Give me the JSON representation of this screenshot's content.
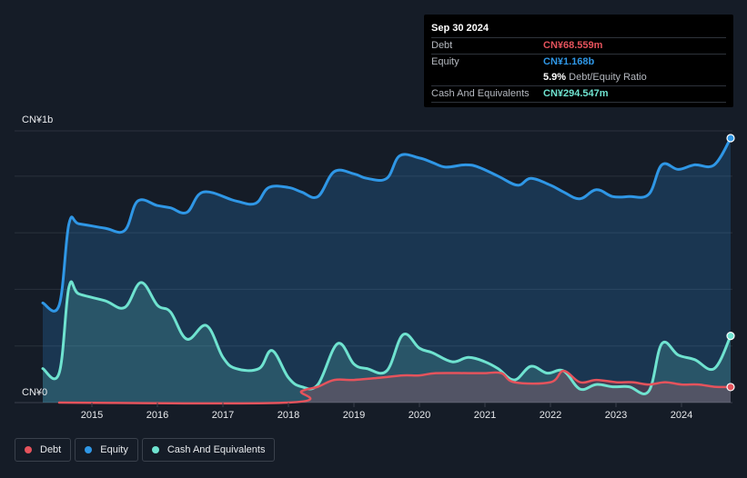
{
  "tooltip": {
    "date": "Sep 30 2024",
    "debt_label": "Debt",
    "debt_value": "CN¥68.559m",
    "equity_label": "Equity",
    "equity_value": "CN¥1.168b",
    "ratio_value": "5.9%",
    "ratio_label": "Debt/Equity Ratio",
    "cash_label": "Cash And Equivalents",
    "cash_value": "CN¥294.547m"
  },
  "colors": {
    "debt": "#e5535c",
    "equity": "#2f97e6",
    "cash": "#6fe3d0"
  },
  "legend": [
    {
      "key": "debt",
      "label": "Debt"
    },
    {
      "key": "equity",
      "label": "Equity"
    },
    {
      "key": "cash",
      "label": "Cash And Equivalents"
    }
  ],
  "chart_data": {
    "type": "area",
    "title": "",
    "xlabel": "",
    "ylabel": "",
    "y_tick_labels": {
      "top": "CN¥1b",
      "bottom": "CN¥0"
    },
    "ylim": [
      0,
      1.2
    ],
    "xlim": [
      2014.25,
      2024.75
    ],
    "x_tick_labels": [
      "2015",
      "2016",
      "2017",
      "2018",
      "2019",
      "2020",
      "2021",
      "2022",
      "2023",
      "2024"
    ],
    "x_ticks": [
      2015,
      2016,
      2017,
      2018,
      2019,
      2020,
      2021,
      2022,
      2023,
      2024
    ],
    "series": [
      {
        "name": "Equity",
        "key": "equity",
        "unit": "CN¥b",
        "points": [
          [
            2014.25,
            0.44
          ],
          [
            2014.5,
            0.43
          ],
          [
            2014.65,
            0.79
          ],
          [
            2014.8,
            0.79
          ],
          [
            2015.2,
            0.77
          ],
          [
            2015.5,
            0.76
          ],
          [
            2015.7,
            0.89
          ],
          [
            2016.0,
            0.87
          ],
          [
            2016.2,
            0.86
          ],
          [
            2016.45,
            0.84
          ],
          [
            2016.7,
            0.93
          ],
          [
            2017.2,
            0.89
          ],
          [
            2017.5,
            0.88
          ],
          [
            2017.7,
            0.95
          ],
          [
            2018.0,
            0.95
          ],
          [
            2018.2,
            0.93
          ],
          [
            2018.45,
            0.91
          ],
          [
            2018.7,
            1.02
          ],
          [
            2019.0,
            1.01
          ],
          [
            2019.2,
            0.99
          ],
          [
            2019.5,
            0.99
          ],
          [
            2019.7,
            1.09
          ],
          [
            2020.0,
            1.08
          ],
          [
            2020.2,
            1.06
          ],
          [
            2020.4,
            1.04
          ],
          [
            2020.7,
            1.05
          ],
          [
            2020.9,
            1.04
          ],
          [
            2021.2,
            1.0
          ],
          [
            2021.5,
            0.96
          ],
          [
            2021.7,
            0.99
          ],
          [
            2022.0,
            0.96
          ],
          [
            2022.2,
            0.93
          ],
          [
            2022.45,
            0.9
          ],
          [
            2022.7,
            0.94
          ],
          [
            2022.95,
            0.91
          ],
          [
            2023.2,
            0.91
          ],
          [
            2023.5,
            0.92
          ],
          [
            2023.7,
            1.05
          ],
          [
            2023.95,
            1.03
          ],
          [
            2024.2,
            1.05
          ],
          [
            2024.5,
            1.05
          ],
          [
            2024.75,
            1.168
          ]
        ]
      },
      {
        "name": "Cash And Equivalents",
        "key": "cash",
        "unit": "CN¥b",
        "points": [
          [
            2014.25,
            0.15
          ],
          [
            2014.5,
            0.13
          ],
          [
            2014.65,
            0.51
          ],
          [
            2014.8,
            0.48
          ],
          [
            2015.2,
            0.45
          ],
          [
            2015.5,
            0.42
          ],
          [
            2015.75,
            0.53
          ],
          [
            2016.0,
            0.43
          ],
          [
            2016.2,
            0.4
          ],
          [
            2016.45,
            0.28
          ],
          [
            2016.75,
            0.34
          ],
          [
            2017.0,
            0.2
          ],
          [
            2017.2,
            0.15
          ],
          [
            2017.55,
            0.15
          ],
          [
            2017.75,
            0.23
          ],
          [
            2018.0,
            0.11
          ],
          [
            2018.2,
            0.07
          ],
          [
            2018.45,
            0.08
          ],
          [
            2018.75,
            0.26
          ],
          [
            2019.0,
            0.17
          ],
          [
            2019.2,
            0.15
          ],
          [
            2019.5,
            0.14
          ],
          [
            2019.75,
            0.3
          ],
          [
            2020.0,
            0.24
          ],
          [
            2020.2,
            0.22
          ],
          [
            2020.5,
            0.18
          ],
          [
            2020.75,
            0.2
          ],
          [
            2021.0,
            0.18
          ],
          [
            2021.2,
            0.15
          ],
          [
            2021.45,
            0.1
          ],
          [
            2021.7,
            0.16
          ],
          [
            2021.95,
            0.13
          ],
          [
            2022.2,
            0.14
          ],
          [
            2022.45,
            0.06
          ],
          [
            2022.7,
            0.08
          ],
          [
            2022.95,
            0.07
          ],
          [
            2023.2,
            0.07
          ],
          [
            2023.5,
            0.05
          ],
          [
            2023.7,
            0.26
          ],
          [
            2023.95,
            0.21
          ],
          [
            2024.2,
            0.19
          ],
          [
            2024.5,
            0.15
          ],
          [
            2024.75,
            0.294547
          ]
        ]
      },
      {
        "name": "Debt",
        "key": "debt",
        "unit": "CN¥b",
        "points": [
          [
            2014.5,
            0.0
          ],
          [
            2018.0,
            0.0
          ],
          [
            2018.2,
            0.05
          ],
          [
            2018.45,
            0.07
          ],
          [
            2018.7,
            0.1
          ],
          [
            2019.0,
            0.1
          ],
          [
            2019.4,
            0.11
          ],
          [
            2019.75,
            0.12
          ],
          [
            2020.0,
            0.12
          ],
          [
            2020.25,
            0.13
          ],
          [
            2020.75,
            0.13
          ],
          [
            2021.0,
            0.13
          ],
          [
            2021.25,
            0.13
          ],
          [
            2021.45,
            0.09
          ],
          [
            2022.0,
            0.09
          ],
          [
            2022.2,
            0.14
          ],
          [
            2022.45,
            0.09
          ],
          [
            2022.7,
            0.1
          ],
          [
            2023.0,
            0.09
          ],
          [
            2023.25,
            0.09
          ],
          [
            2023.5,
            0.08
          ],
          [
            2023.75,
            0.09
          ],
          [
            2024.0,
            0.08
          ],
          [
            2024.25,
            0.08
          ],
          [
            2024.5,
            0.07
          ],
          [
            2024.75,
            0.068559
          ]
        ]
      }
    ]
  }
}
